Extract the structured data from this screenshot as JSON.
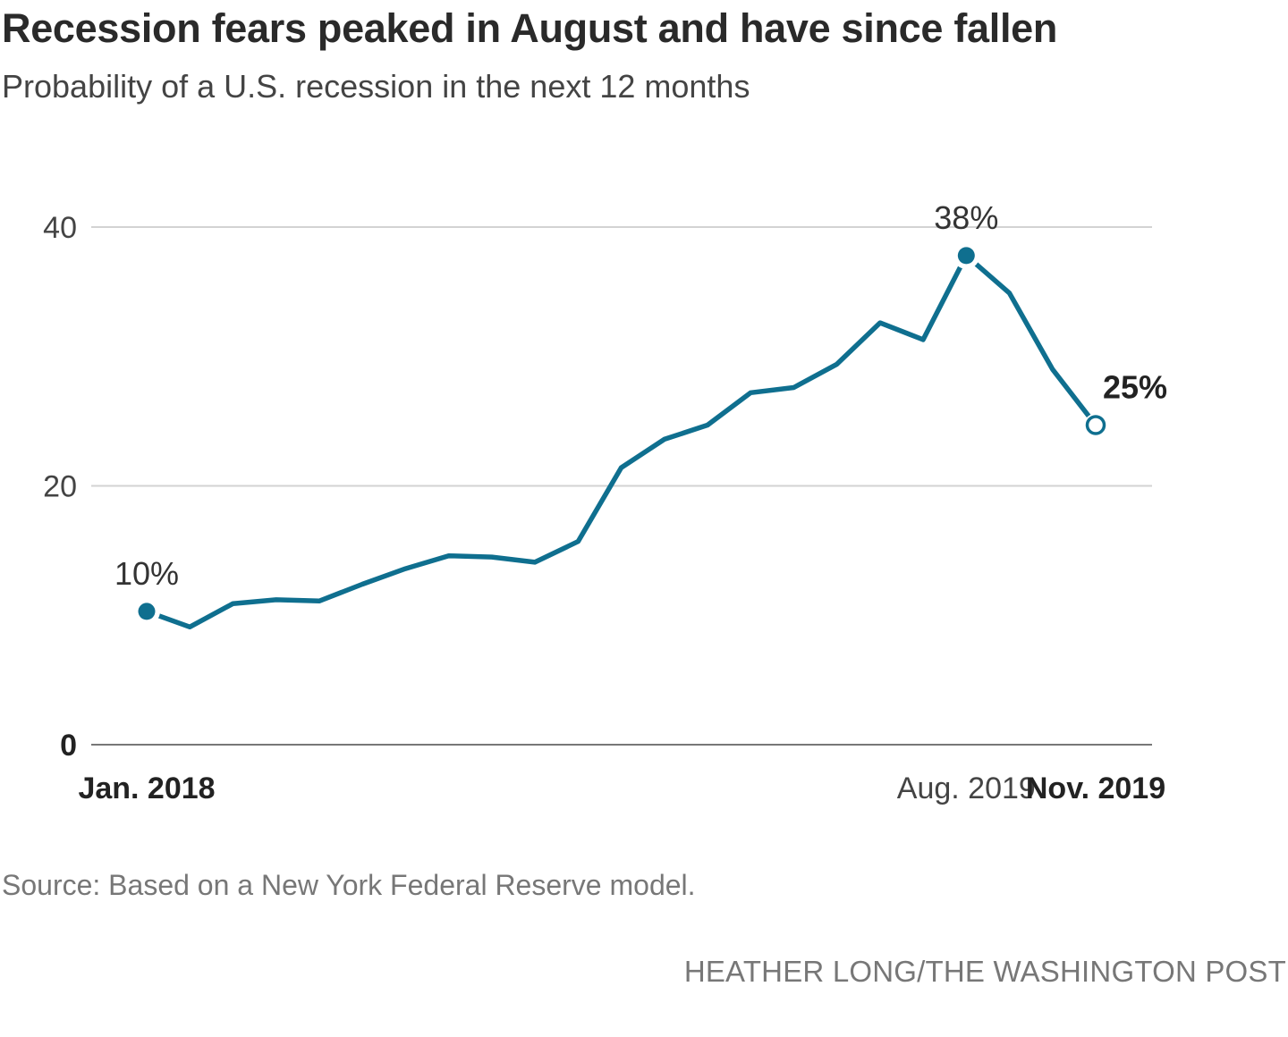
{
  "header": {
    "title": "Recession fears peaked in August and have since fallen",
    "subtitle": "Probability of a U.S. recession in the next 12 months"
  },
  "footer": {
    "source": "Source: Based on a New York Federal Reserve model.",
    "credit": "HEATHER LONG/THE WASHINGTON POST"
  },
  "colors": {
    "line": "#0f6f8f",
    "grid": "#d3d3d3",
    "baseline": "#777777"
  },
  "chart_data": {
    "type": "line",
    "title": "Recession fears peaked in August and have since fallen",
    "subtitle": "Probability of a U.S. recession in the next 12 months",
    "xlabel": "",
    "ylabel": "",
    "ylim": [
      0,
      40
    ],
    "yticks": [
      {
        "value": 0,
        "label": "0",
        "bold": true
      },
      {
        "value": 20,
        "label": "20",
        "bold": false
      },
      {
        "value": 40,
        "label": "40",
        "bold": false
      }
    ],
    "x": [
      "2018-01",
      "2018-02",
      "2018-03",
      "2018-04",
      "2018-05",
      "2018-06",
      "2018-07",
      "2018-08",
      "2018-09",
      "2018-10",
      "2018-11",
      "2018-12",
      "2019-01",
      "2019-02",
      "2019-03",
      "2019-04",
      "2019-05",
      "2019-06",
      "2019-07",
      "2019-08",
      "2019-09",
      "2019-10",
      "2019-11"
    ],
    "xtick_labels": [
      {
        "x": "2018-01",
        "label": "Jan. 2018",
        "bold": true
      },
      {
        "x": "2019-08",
        "label": "Aug. 2019",
        "bold": false
      },
      {
        "x": "2019-11",
        "label": "Nov. 2019",
        "bold": true
      }
    ],
    "series": [
      {
        "values": [
          10.3,
          9.1,
          10.9,
          11.2,
          11.1,
          12.4,
          13.6,
          14.6,
          14.5,
          14.1,
          15.7,
          21.4,
          23.6,
          24.7,
          27.2,
          27.6,
          29.4,
          32.6,
          31.3,
          37.8,
          34.9,
          29.0,
          24.7
        ]
      }
    ],
    "annotations": [
      {
        "x": "2018-01",
        "label": "10%",
        "marker": "filled",
        "bold": false
      },
      {
        "x": "2019-08",
        "label": "38%",
        "marker": "filled",
        "bold": false
      },
      {
        "x": "2019-11",
        "label": "25%",
        "marker": "open",
        "bold": true
      }
    ],
    "grid": true,
    "legend": "none"
  }
}
